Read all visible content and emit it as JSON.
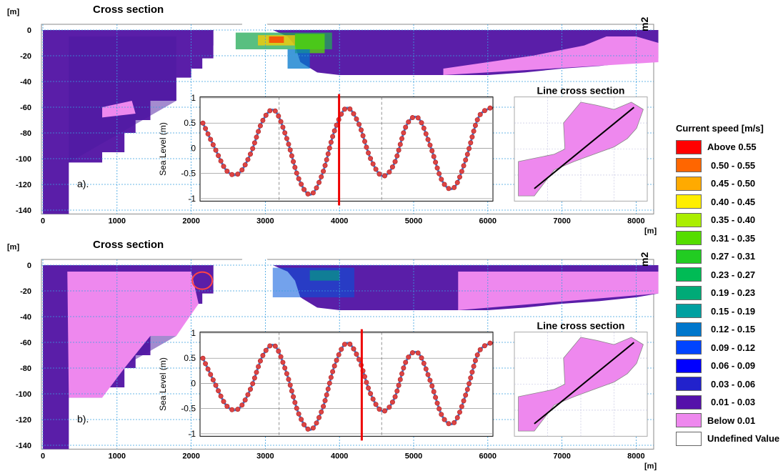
{
  "panels": [
    {
      "id": "a",
      "title": "Cross section",
      "panel_label": "a).",
      "y_unit": "[m]",
      "x_unit": "[m]",
      "corner_label": "m2",
      "inset_title": "Line cross section"
    },
    {
      "id": "b",
      "title": "Cross section",
      "panel_label": "b).",
      "y_unit": "[m]",
      "x_unit": "[m]",
      "corner_label": "m2",
      "inset_title": "Line cross section"
    }
  ],
  "legend": {
    "title": "Current speed [m/s]",
    "items": [
      {
        "label": "Above 0.55",
        "color": "#ff0000"
      },
      {
        "label": "0.50 - 0.55",
        "color": "#ff6600"
      },
      {
        "label": "0.45 - 0.50",
        "color": "#ffaa00"
      },
      {
        "label": "0.40 - 0.45",
        "color": "#ffee00"
      },
      {
        "label": "0.35 - 0.40",
        "color": "#aaee00"
      },
      {
        "label": "0.31 - 0.35",
        "color": "#55dd00"
      },
      {
        "label": "0.27 - 0.31",
        "color": "#22cc22"
      },
      {
        "label": "0.23 - 0.27",
        "color": "#00bb55"
      },
      {
        "label": "0.19 - 0.23",
        "color": "#00aa77"
      },
      {
        "label": "0.15 - 0.19",
        "color": "#00a0a0"
      },
      {
        "label": "0.12 - 0.15",
        "color": "#0077cc"
      },
      {
        "label": "0.09 - 0.12",
        "color": "#0044ff"
      },
      {
        "label": "0.06 - 0.09",
        "color": "#0000ff"
      },
      {
        "label": "0.03 - 0.06",
        "color": "#2222cc"
      },
      {
        "label": "0.01 - 0.03",
        "color": "#5511aa"
      },
      {
        "label": "Below 0.01",
        "color": "#ee88ee"
      },
      {
        "label": "Undefined Value",
        "color": "#ffffff"
      }
    ]
  },
  "chart_data": [
    {
      "type": "heatmap",
      "title": "Cross section",
      "ylabel": "[m]",
      "xlabel": "[m]",
      "x_ticks": [
        0,
        1000,
        2000,
        3000,
        4000,
        5000,
        6000,
        7000,
        8000
      ],
      "y_ticks": [
        0,
        -20,
        -40,
        -60,
        -80,
        -100,
        -120,
        -140
      ],
      "xlim": [
        -60,
        8300
      ],
      "ylim": [
        -143,
        4
      ],
      "grid": true,
      "legend_position": "right",
      "seabed": [
        [
          0,
          -143
        ],
        [
          350,
          -143
        ],
        [
          350,
          -103
        ],
        [
          800,
          -103
        ],
        [
          800,
          -95
        ],
        [
          1100,
          -95
        ],
        [
          1100,
          -80
        ],
        [
          1250,
          -80
        ],
        [
          1250,
          -70
        ],
        [
          1450,
          -70
        ],
        [
          1450,
          -55
        ],
        [
          1800,
          -55
        ],
        [
          1800,
          -37
        ],
        [
          2000,
          -37
        ],
        [
          2000,
          -30
        ],
        [
          2150,
          -30
        ],
        [
          2150,
          -22
        ],
        [
          2300,
          -22
        ],
        [
          2300,
          -12
        ],
        [
          2500,
          -12
        ],
        [
          2500,
          -2
        ],
        [
          2600,
          -1
        ],
        [
          2800,
          -4
        ],
        [
          3100,
          -8
        ],
        [
          3300,
          -18
        ],
        [
          3500,
          -26
        ],
        [
          3700,
          -33
        ],
        [
          4000,
          -35
        ],
        [
          4500,
          -35
        ],
        [
          5000,
          -35
        ],
        [
          5500,
          -35
        ],
        [
          6000,
          -35
        ],
        [
          6500,
          -33
        ],
        [
          7000,
          -30
        ],
        [
          7500,
          -28
        ],
        [
          8000,
          -25
        ],
        [
          8300,
          -22
        ]
      ]
    },
    {
      "type": "line",
      "ylabel": "Sea Level (m)",
      "y_ticks": [
        1,
        0.5,
        0,
        -0.5,
        -1
      ],
      "ylim": [
        -1.05,
        1.02
      ],
      "grid": true,
      "marker": "circle",
      "series": [
        {
          "x": [
            0,
            0.29,
            0.58,
            0.87,
            1.16,
            1.45,
            1.74,
            2.03,
            2.32,
            2.61,
            2.9,
            3.19,
            3.48,
            3.77,
            4.06,
            4.35,
            4.64,
            4.93,
            5.22,
            5.51,
            5.8,
            6.09,
            6.38,
            6.67,
            6.96
          ],
          "values": [
            0.5,
            0.0,
            -0.45,
            -0.5,
            -0.1,
            0.55,
            0.75,
            0.2,
            -0.6,
            -0.92,
            -0.5,
            0.35,
            0.8,
            0.5,
            -0.2,
            -0.55,
            -0.3,
            0.45,
            0.6,
            0.05,
            -0.65,
            -0.78,
            -0.2,
            0.6,
            0.8
          ]
        }
      ],
      "time_marker": {
        "panel_a": 3.3,
        "panel_b": 3.85
      }
    }
  ]
}
